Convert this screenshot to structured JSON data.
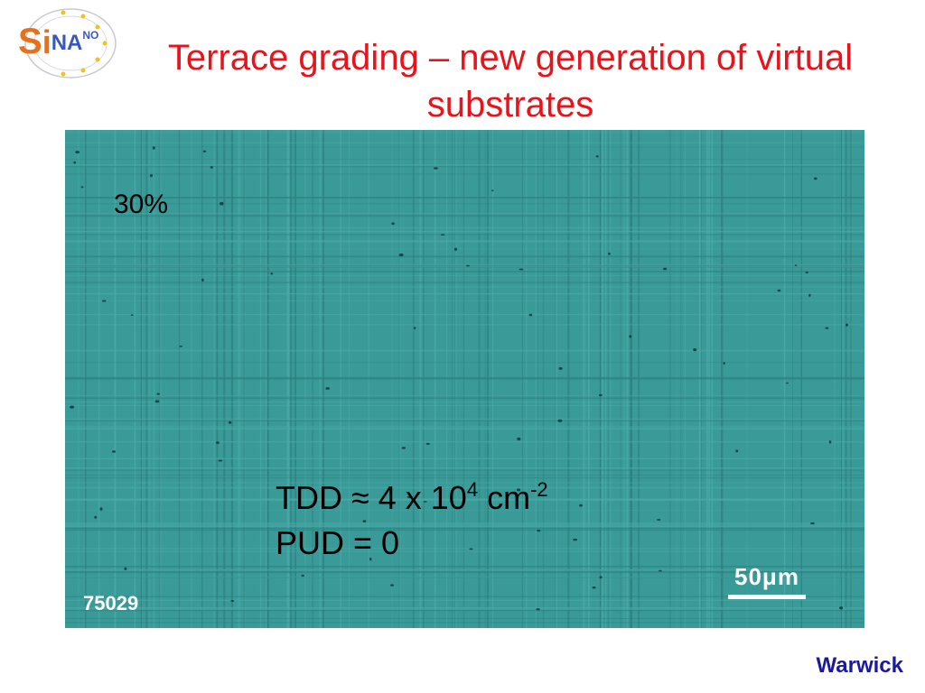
{
  "logo": {
    "s": "S",
    "i": "i",
    "na": "NA",
    "no": "NO"
  },
  "title": "Terrace grading – new generation of virtual substrates",
  "micrograph": {
    "percent_label": "30%",
    "tdd_prefix": "TDD ≈ 4 x 10",
    "tdd_exponent": "4",
    "tdd_unit": " cm",
    "tdd_unit_exponent": "-2",
    "pud": "PUD = 0",
    "scale_bar": "50μm",
    "sample_id": "75029"
  },
  "footer": {
    "institution": "Warwick"
  },
  "colors": {
    "title": "#e8141c",
    "micrograph_background": "#3a9a98",
    "footer": "#1a1a9a",
    "logo_orange": "#e8701a",
    "logo_blue": "#3a58b8"
  }
}
